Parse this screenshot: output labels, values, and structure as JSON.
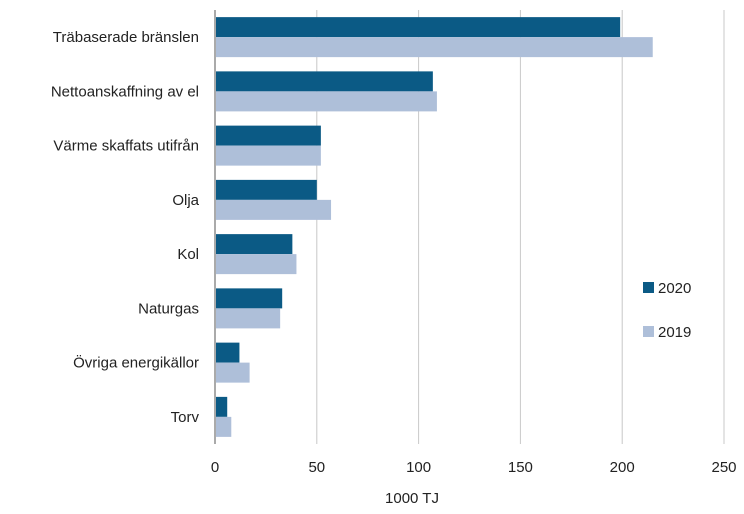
{
  "chart_data": {
    "type": "bar",
    "orientation": "horizontal",
    "categories": [
      "Träbaserade bränslen",
      "Nettoanskaffning av el",
      "Värme skaffats utifrån",
      "Olja",
      "Kol",
      "Naturgas",
      "Övriga energikällor",
      "Torv"
    ],
    "series": [
      {
        "name": "2020",
        "color": "#0b5a85",
        "values": [
          199,
          107,
          52,
          50,
          38,
          33,
          12,
          6
        ]
      },
      {
        "name": "2019",
        "color": "#aebfd9",
        "values": [
          215,
          109,
          52,
          57,
          40,
          32,
          17,
          8
        ]
      }
    ],
    "xlabel": "1000 TJ",
    "ylabel": "",
    "xlim": [
      0,
      250
    ],
    "xticks": [
      "0",
      "50",
      "100",
      "150",
      "200",
      "250"
    ],
    "grid": "vertical",
    "gridColor": "#c8c8c8",
    "legend": "right"
  }
}
